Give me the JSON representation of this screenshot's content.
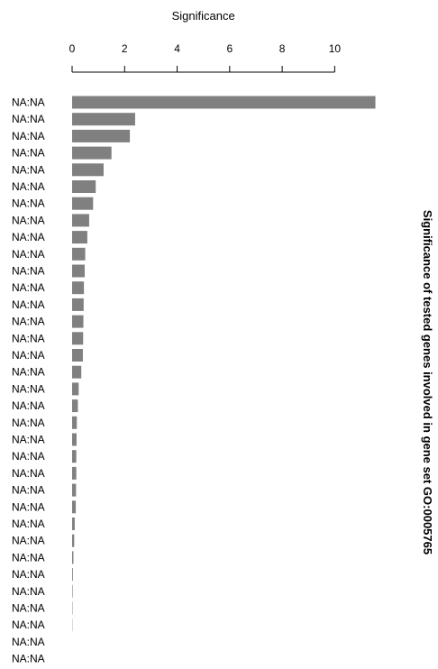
{
  "chart_data": {
    "type": "bar",
    "orientation": "horizontal",
    "title": "Significance of tested genes involved in gene set GO:0005765",
    "xlabel": "Significance",
    "x_axis_position": "top",
    "xlim": [
      0,
      11.6
    ],
    "xticks": [
      0,
      2,
      4,
      6,
      8,
      10
    ],
    "grid": false,
    "bar_color": "#808080",
    "categories": [
      "NA:NA",
      "NA:NA",
      "NA:NA",
      "NA:NA",
      "NA:NA",
      "NA:NA",
      "NA:NA",
      "NA:NA",
      "NA:NA",
      "NA:NA",
      "NA:NA",
      "NA:NA",
      "NA:NA",
      "NA:NA",
      "NA:NA",
      "NA:NA",
      "NA:NA",
      "NA:NA",
      "NA:NA",
      "NA:NA",
      "NA:NA",
      "NA:NA",
      "NA:NA",
      "NA:NA",
      "NA:NA",
      "NA:NA",
      "NA:NA",
      "NA:NA",
      "NA:NA",
      "NA:NA",
      "NA:NA",
      "NA:NA",
      "NA:NA",
      "NA:NA",
      "NA:NA"
    ],
    "values": [
      11.55,
      2.4,
      2.2,
      1.5,
      1.2,
      0.9,
      0.8,
      0.65,
      0.58,
      0.5,
      0.48,
      0.45,
      0.44,
      0.43,
      0.42,
      0.41,
      0.35,
      0.25,
      0.22,
      0.18,
      0.17,
      0.16,
      0.16,
      0.15,
      0.14,
      0.1,
      0.08,
      0.05,
      0.03,
      0.02,
      0.015,
      0.01,
      0.0,
      0.0,
      0.0
    ]
  }
}
